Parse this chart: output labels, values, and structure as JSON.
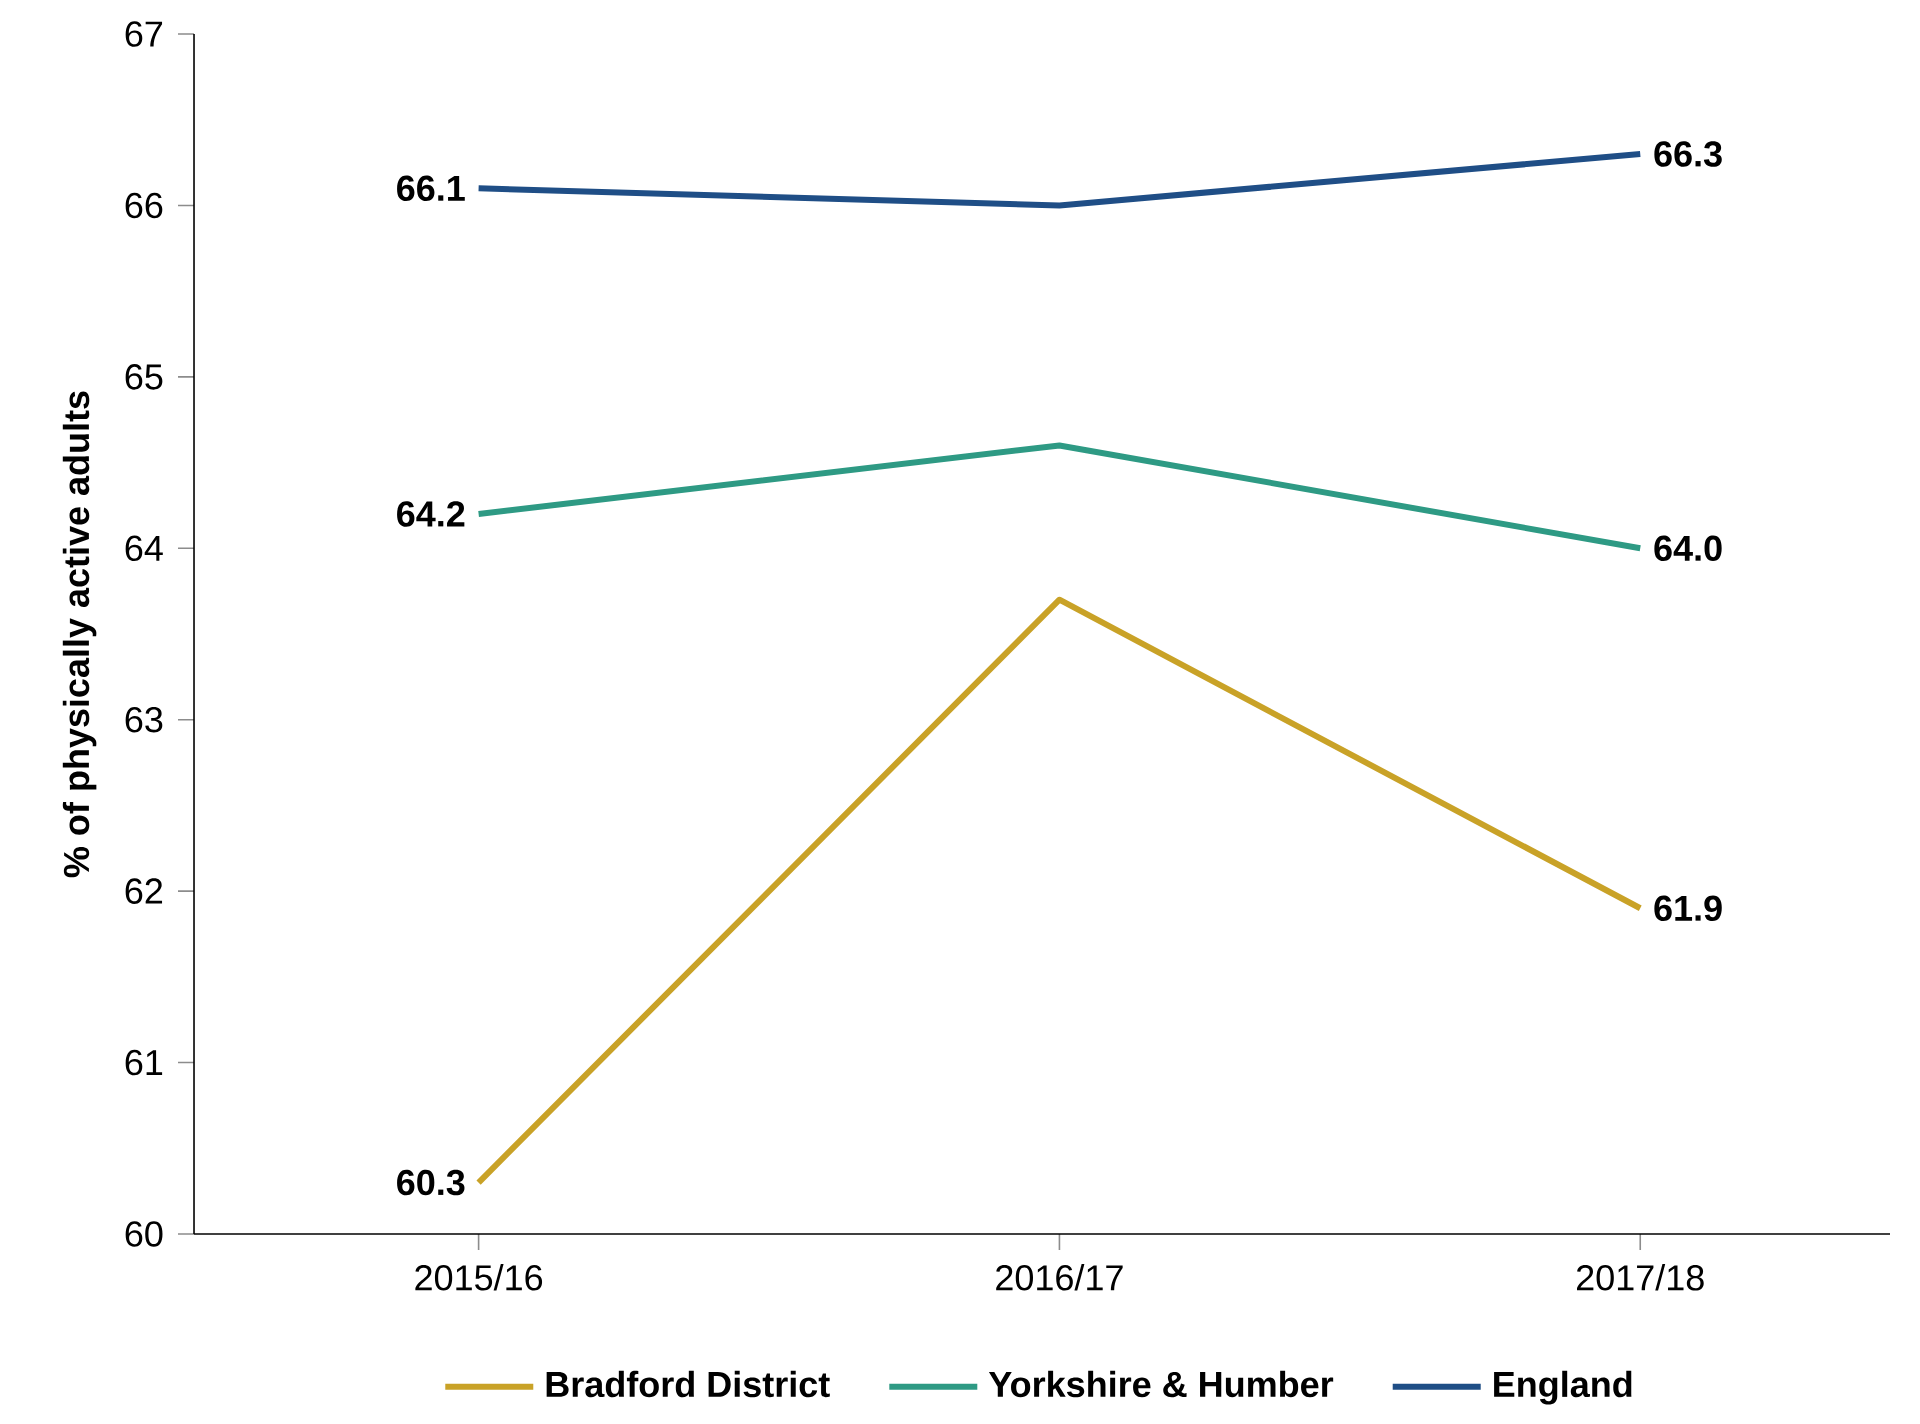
{
  "chart_data": {
    "type": "line",
    "ylabel": "% of physically active adults",
    "categories": [
      "2015/16",
      "2016/17",
      "2017/18"
    ],
    "series": [
      {
        "name": "Bradford District",
        "color": "#c9a227",
        "values": [
          60.3,
          63.7,
          61.9
        ],
        "value_labels": [
          "60.3",
          null,
          "61.9"
        ]
      },
      {
        "name": "Yorkshire & Humber",
        "color": "#2e9a84",
        "values": [
          64.2,
          64.6,
          64.0
        ],
        "value_labels": [
          "64.2",
          null,
          "64.0"
        ]
      },
      {
        "name": "England",
        "color": "#1f4e86",
        "values": [
          66.1,
          66.0,
          66.3
        ],
        "value_labels": [
          "66.1",
          null,
          "66.3"
        ]
      }
    ],
    "ylim": [
      60,
      67
    ],
    "yticks": [
      60,
      61,
      62,
      63,
      64,
      65,
      66,
      67
    ],
    "grid": false,
    "legend": "bottom",
    "marker": "none",
    "line_style": "solid"
  }
}
